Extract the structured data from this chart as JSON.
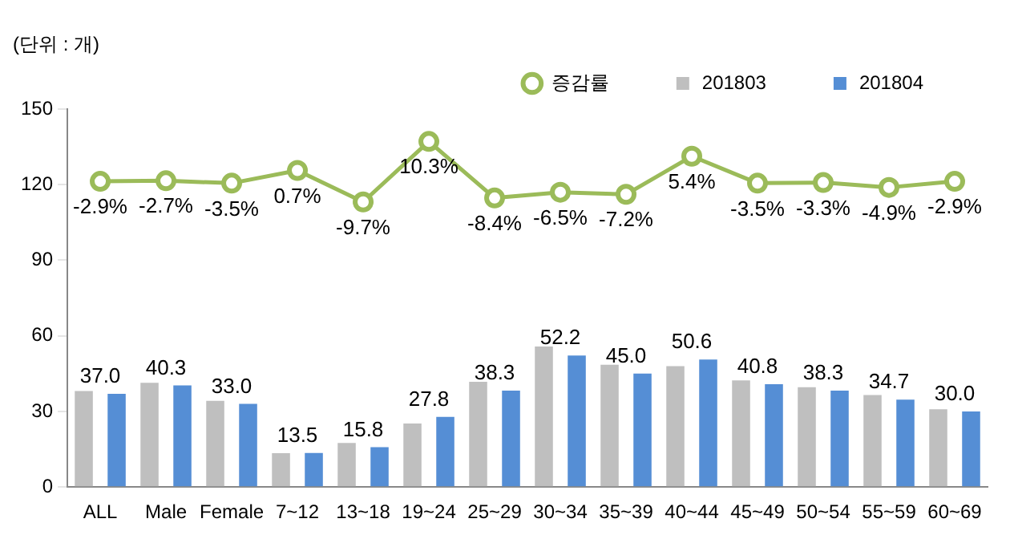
{
  "chart_data": {
    "type": "bar",
    "ylabel": "(단위 : 개)",
    "categories": [
      "ALL",
      "Male",
      "Female",
      "7~12",
      "13~18",
      "19~24",
      "25~29",
      "30~34",
      "35~39",
      "40~44",
      "45~49",
      "50~54",
      "55~59",
      "60~69"
    ],
    "series": [
      {
        "name": "201803",
        "color": "#bfbfbf",
        "values": [
          38.1,
          41.4,
          34.2,
          13.4,
          17.5,
          25.2,
          41.8,
          55.8,
          48.5,
          48.0,
          42.3,
          39.6,
          36.5,
          30.9
        ]
      },
      {
        "name": "201804",
        "color": "#558ed5",
        "values": [
          37.0,
          40.3,
          33.0,
          13.5,
          15.8,
          27.8,
          38.3,
          52.2,
          45.0,
          50.6,
          40.8,
          38.3,
          34.7,
          30.0
        ],
        "value_labels": [
          "37.0",
          "40.3",
          "33.0",
          "13.5",
          "15.8",
          "27.8",
          "38.3",
          "52.2",
          "45.0",
          "50.6",
          "40.8",
          "38.3",
          "34.7",
          "30.0"
        ]
      },
      {
        "name": "증감률",
        "type": "line",
        "axis": "y2",
        "color": "#9bbb59",
        "marker": "circle",
        "values": [
          -2.9,
          -2.7,
          -3.5,
          0.7,
          -9.7,
          10.3,
          -8.4,
          -6.5,
          -7.2,
          5.4,
          -3.5,
          -3.3,
          -4.9,
          -2.9
        ],
        "value_labels": [
          "-2.9%",
          "-2.7%",
          "-3.5%",
          "0.7%",
          "-9.7%",
          "10.3%",
          "-8.4%",
          "-6.5%",
          "-7.2%",
          "5.4%",
          "-3.5%",
          "-3.3%",
          "-4.9%",
          "-2.9%"
        ]
      }
    ],
    "ylim": [
      0,
      150
    ],
    "yticks": [
      0,
      30,
      60,
      90,
      120,
      150
    ],
    "y2lim": [
      -104,
      21
    ],
    "tick_labels": "xy",
    "grid": false,
    "legend": "top right"
  }
}
